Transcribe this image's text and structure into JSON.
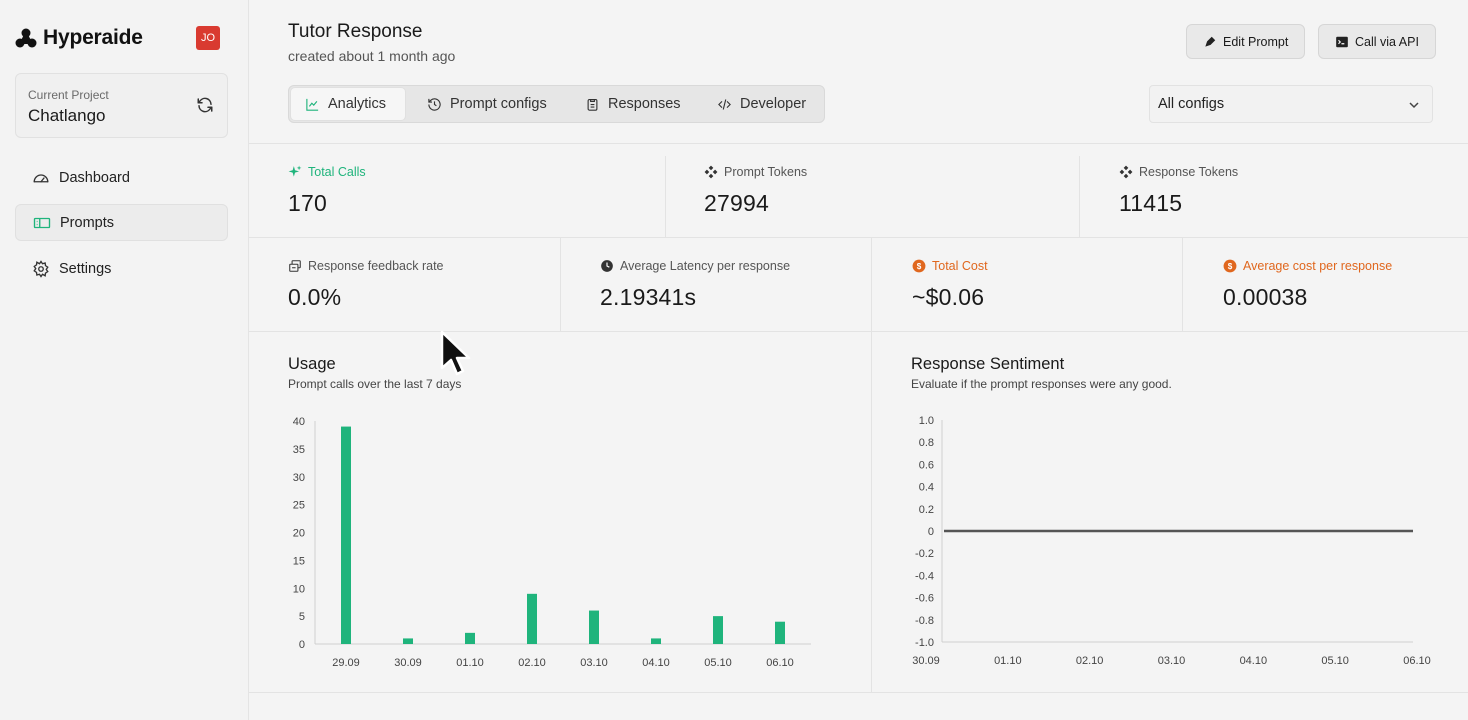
{
  "sidebar": {
    "logo_text": "Hyperaide",
    "avatar": "JO",
    "project_label": "Current Project",
    "project_name": "Chatlango",
    "nav": [
      {
        "label": "Dashboard",
        "icon": "gauge-icon"
      },
      {
        "label": "Prompts",
        "icon": "prompt-icon",
        "active": true
      },
      {
        "label": "Settings",
        "icon": "gear-icon"
      }
    ]
  },
  "header": {
    "title": "Tutor Response",
    "subtitle": "created about 1 month ago",
    "edit_prompt": "Edit Prompt",
    "call_api": "Call via API"
  },
  "tabs": [
    {
      "label": "Analytics",
      "active": true
    },
    {
      "label": "Prompt configs"
    },
    {
      "label": "Responses"
    },
    {
      "label": "Developer"
    }
  ],
  "config_select": "All configs",
  "stats": {
    "total_calls": {
      "label": "Total Calls",
      "value": "170"
    },
    "prompt_tokens": {
      "label": "Prompt Tokens",
      "value": "27994"
    },
    "response_tokens": {
      "label": "Response Tokens",
      "value": "11415"
    },
    "feedback_rate": {
      "label": "Response feedback rate",
      "value": "0.0%"
    },
    "avg_latency": {
      "label": "Average Latency per response",
      "value": "2.19341s"
    },
    "total_cost": {
      "label": "Total Cost",
      "value": "~$0.06"
    },
    "avg_cost": {
      "label": "Average cost per response",
      "value": "0.00038"
    }
  },
  "colors": {
    "accent_green": "#1fb47c",
    "cost_orange": "#e0671e",
    "avatar_red": "#d93a30"
  },
  "usage": {
    "title": "Usage",
    "subtitle": "Prompt calls over the last 7 days"
  },
  "sentiment": {
    "title": "Response Sentiment",
    "subtitle": "Evaluate if the prompt responses were any good."
  },
  "chart_data": [
    {
      "type": "bar",
      "title": "Usage",
      "categories": [
        "29.09",
        "30.09",
        "01.10",
        "02.10",
        "03.10",
        "04.10",
        "05.10",
        "06.10"
      ],
      "values": [
        39,
        1,
        2,
        9,
        6,
        1,
        5,
        4
      ],
      "ylim": [
        0,
        40
      ],
      "yticks": [
        0,
        5,
        10,
        15,
        20,
        25,
        30,
        35,
        40
      ],
      "color": "#1fb47c"
    },
    {
      "type": "line",
      "title": "Response Sentiment",
      "categories": [
        "30.09",
        "01.10",
        "02.10",
        "03.10",
        "04.10",
        "05.10",
        "06.10"
      ],
      "values": [
        0,
        0,
        0,
        0,
        0,
        0,
        0
      ],
      "ylim": [
        -1.0,
        1.0
      ],
      "yticks": [
        "1.0",
        "0.8",
        "0.6",
        "0.4",
        "0.2",
        "0",
        "-0.2",
        "-0.4",
        "-0.6",
        "-0.8",
        "-1.0"
      ],
      "color": "#555555"
    }
  ]
}
